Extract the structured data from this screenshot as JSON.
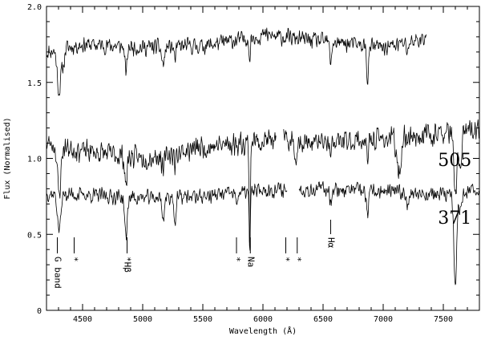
{
  "chart_data": {
    "type": "line",
    "xlabel": "Wavelength (Å)",
    "ylabel": "Flux (Normalised)",
    "xlim": [
      4200,
      7800
    ],
    "ylim": [
      0,
      2.0
    ],
    "xticks": [
      "4500",
      "5000",
      "5500",
      "6000",
      "6500",
      "7000",
      "7500"
    ],
    "xtick_values": [
      4500,
      5000,
      5500,
      6000,
      6500,
      7000,
      7500
    ],
    "yticks": [
      "0",
      "0.5",
      "1.0",
      "1.5",
      "2.0"
    ],
    "ytick_values": [
      0,
      0.5,
      1.0,
      1.5,
      2.0
    ],
    "grid": false,
    "series": [
      {
        "name": "",
        "seed": 11,
        "x_range": [
          4200,
          7360
        ],
        "gaps": [],
        "noise": 0.065,
        "continuum": [
          [
            4200,
            1.7
          ],
          [
            4500,
            1.75
          ],
          [
            5000,
            1.73
          ],
          [
            5500,
            1.74
          ],
          [
            5800,
            1.78
          ],
          [
            6000,
            1.81
          ],
          [
            6500,
            1.77
          ],
          [
            7000,
            1.73
          ],
          [
            7360,
            1.79
          ]
        ],
        "lines": [
          [
            4305,
            0.28,
            15
          ],
          [
            4340,
            0.1,
            10
          ],
          [
            4861,
            0.18,
            9
          ],
          [
            5170,
            0.12,
            12
          ],
          [
            5270,
            0.08,
            8
          ],
          [
            5890,
            0.17,
            5
          ],
          [
            6563,
            0.16,
            7
          ],
          [
            6870,
            0.21,
            9
          ],
          [
            7200,
            0.05,
            10
          ]
        ]
      },
      {
        "name": "505",
        "seed": 23,
        "x_range": [
          4200,
          7800
        ],
        "gaps": [
          [
            6110,
            6170
          ]
        ],
        "noise": 0.09,
        "continuum": [
          [
            4200,
            1.1
          ],
          [
            4500,
            1.05
          ],
          [
            5000,
            1.0
          ],
          [
            5500,
            1.07
          ],
          [
            6000,
            1.12
          ],
          [
            6500,
            1.1
          ],
          [
            7000,
            1.13
          ],
          [
            7450,
            1.16
          ],
          [
            7800,
            1.18
          ]
        ],
        "lines": [
          [
            4305,
            0.32,
            14
          ],
          [
            4861,
            0.2,
            9
          ],
          [
            5170,
            0.12,
            10
          ],
          [
            5270,
            0.08,
            8
          ],
          [
            5890,
            0.72,
            5
          ],
          [
            6270,
            0.12,
            7
          ],
          [
            6563,
            0.12,
            7
          ],
          [
            6870,
            0.14,
            9
          ],
          [
            7130,
            0.24,
            18
          ],
          [
            7600,
            0.45,
            12
          ],
          [
            7640,
            0.22,
            12
          ]
        ]
      },
      {
        "name": "371",
        "seed": 37,
        "x_range": [
          4200,
          7800
        ],
        "gaps": [
          [
            6200,
            6300
          ]
        ],
        "noise": 0.06,
        "continuum": [
          [
            4200,
            0.77
          ],
          [
            4500,
            0.76
          ],
          [
            5000,
            0.74
          ],
          [
            5500,
            0.75
          ],
          [
            6000,
            0.79
          ],
          [
            6500,
            0.8
          ],
          [
            7000,
            0.78
          ],
          [
            7500,
            0.76
          ],
          [
            7800,
            0.79
          ]
        ],
        "lines": [
          [
            4305,
            0.24,
            14
          ],
          [
            4861,
            0.28,
            10
          ],
          [
            5170,
            0.14,
            10
          ],
          [
            5270,
            0.18,
            8
          ],
          [
            5780,
            0.09,
            6
          ],
          [
            5890,
            0.38,
            5
          ],
          [
            6563,
            0.08,
            7
          ],
          [
            6870,
            0.18,
            9
          ],
          [
            7200,
            0.06,
            10
          ],
          [
            7600,
            0.62,
            12
          ],
          [
            7640,
            0.12,
            10
          ]
        ]
      }
    ],
    "series_labels": [
      {
        "text": "505",
        "x": 7455,
        "y": 0.95
      },
      {
        "text": "371",
        "x": 7455,
        "y": 0.57
      }
    ],
    "markers": [
      {
        "x": 4290,
        "text": "G band"
      },
      {
        "x": 4430,
        "text": "*"
      },
      {
        "x": 4870,
        "text": "*Hβ"
      },
      {
        "x": 5780,
        "text": "*"
      },
      {
        "x": 5895,
        "text": "Na"
      },
      {
        "x": 6190,
        "text": "*"
      },
      {
        "x": 6285,
        "text": "*"
      },
      {
        "x": 6563,
        "text": "Hα"
      }
    ]
  }
}
